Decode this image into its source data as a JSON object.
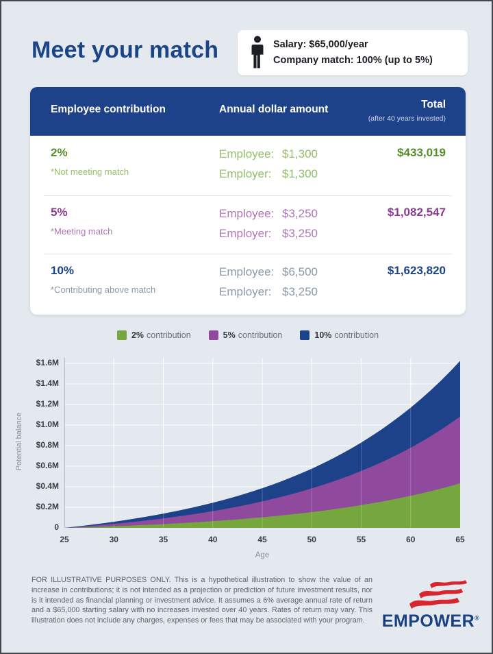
{
  "header": {
    "title": "Meet your match",
    "info_box": {
      "line1": "Salary: $65,000/year",
      "line2": "Company match: 100% (up to 5%)"
    }
  },
  "table": {
    "header_bg": "#1d4289",
    "columns": [
      "Employee contribution",
      "Annual dollar amount",
      "Total"
    ],
    "total_subtext": "(after 40 years invested)",
    "rows": [
      {
        "pct": "2%",
        "note": "*Not meeting match",
        "lines": [
          {
            "label": "Employee:",
            "value": "$1,300"
          },
          {
            "label": "Employer:",
            "value": "$1,300"
          }
        ],
        "total": "$433,019",
        "strong_color": "#578e2b",
        "light_color": "#92bf67"
      },
      {
        "pct": "5%",
        "note": "*Meeting match",
        "lines": [
          {
            "label": "Employee:",
            "value": "$3,250"
          },
          {
            "label": "Employer:",
            "value": "$3,250"
          }
        ],
        "total": "$1,082,547",
        "strong_color": "#8c3b92",
        "light_color": "#ae76b5"
      },
      {
        "pct": "10%",
        "note": "*Contributing above match",
        "lines": [
          {
            "label": "Employee:",
            "value": "$6,500"
          },
          {
            "label": "Employer:",
            "value": "$3,250"
          }
        ],
        "total": "$1,623,820",
        "strong_color": "#1c4385",
        "light_color": "#8a99a9"
      }
    ]
  },
  "legend": [
    {
      "label_bold": "2%",
      "label_rest": "contribution",
      "color": "#76a73f"
    },
    {
      "label_bold": "5%",
      "label_rest": "contribution",
      "color": "#8f4a9d"
    },
    {
      "label_bold": "10%",
      "label_rest": "contribution",
      "color": "#1d4289"
    }
  ],
  "chart_data": {
    "type": "area",
    "title": "Potential balance by age for 2%, 5% and 10% contributions",
    "x": [
      25,
      30,
      35,
      40,
      45,
      50,
      55,
      60,
      65
    ],
    "xlabel": "Age",
    "ylabel": "Potential balance",
    "ylim": [
      0,
      1700000
    ],
    "yticks": [
      "0",
      "$0.2M",
      "$0.4M",
      "$0.6M",
      "$0.8M",
      "$1.0M",
      "$1.2M",
      "$1.4M",
      "$1.6M"
    ],
    "ytick_interval": 200000,
    "grid": true,
    "legend_position": "top",
    "assumed_annual_return": 0.06,
    "series": [
      {
        "name": "2% contribution",
        "color": "#76a73f",
        "values": [
          0,
          15773,
          36884,
          65132,
          102937,
          153523,
          221220,
          311816,
          433019
        ]
      },
      {
        "name": "5% contribution",
        "color": "#8f4a9d",
        "values": [
          0,
          39434,
          92210,
          162825,
          257331,
          383793,
          553036,
          779513,
          1082547
        ]
      },
      {
        "name": "10% contribution",
        "color": "#1d4289",
        "values": [
          0,
          59149,
          138306,
          244222,
          385984,
          575662,
          829490,
          1169243,
          1623820
        ]
      }
    ]
  },
  "footer": {
    "disclaimer": "FOR ILLUSTRATIVE PURPOSES ONLY. This is a hypothetical illustration to show the value of an increase in contributions; it is not intended as a projection or prediction of future investment results, nor is it intended as financial planning or investment advice. It assumes a 6% average annual rate of return and a $65,000 starting salary with no increases invested over 40 years. Rates of return may vary. This illustration does not include any charges, expenses or fees that may be associated with your program.",
    "logo_text": "EMPOWER",
    "logo_reg": "®",
    "logo_color": "#1b4080",
    "flag_color": "#d7262e"
  }
}
